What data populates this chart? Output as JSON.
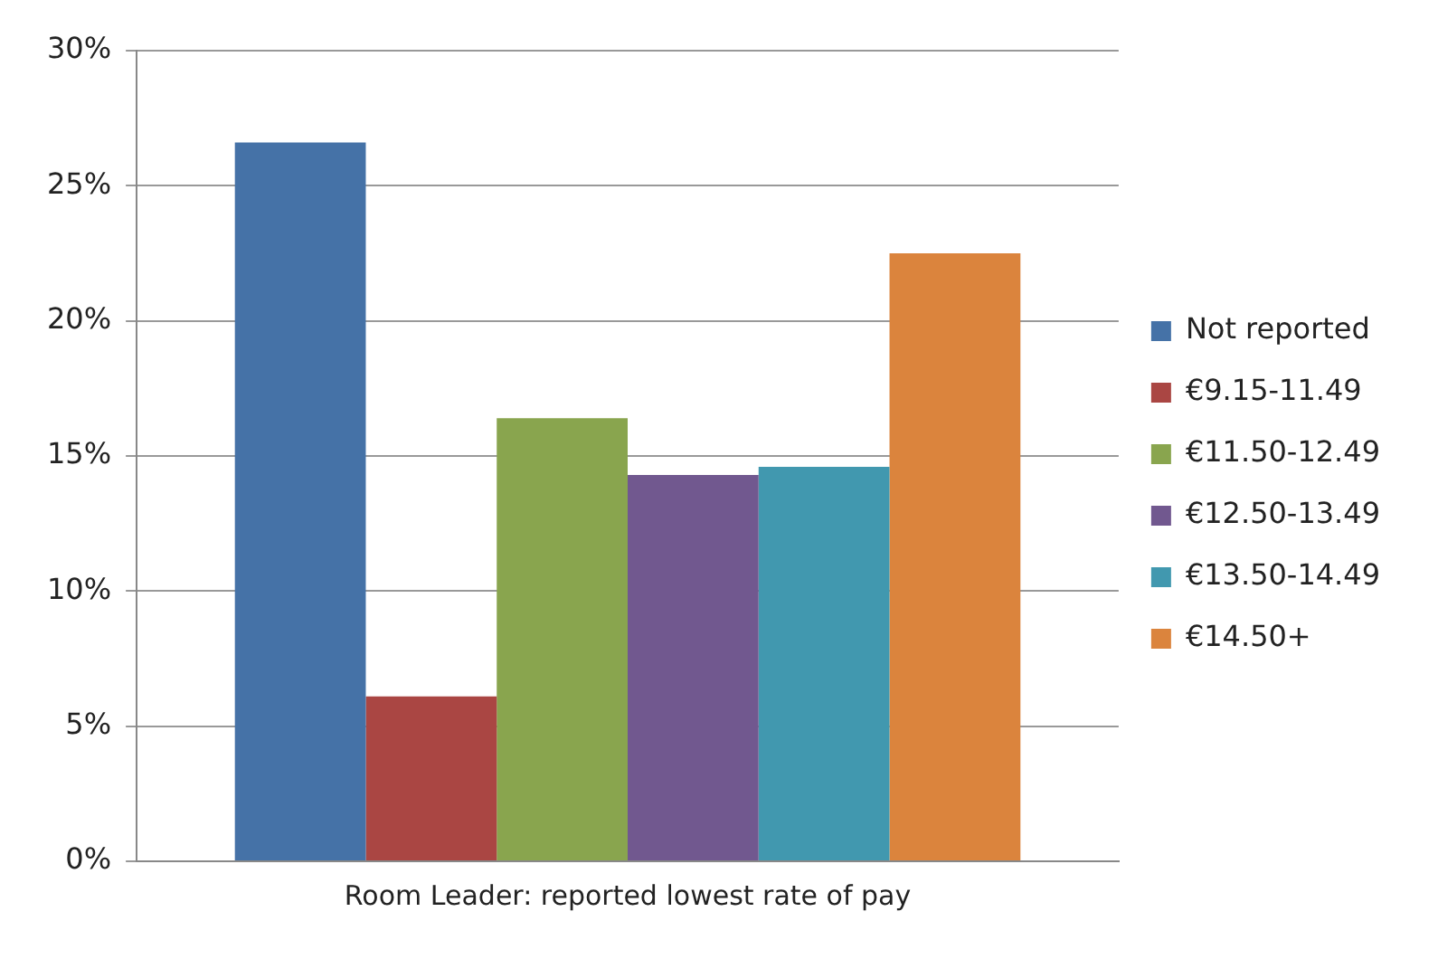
{
  "chart_data": {
    "type": "bar",
    "categories": [
      "Room Leader: reported lowest rate of pay"
    ],
    "series": [
      {
        "name": "Not reported",
        "color": "#4572a7",
        "values": [
          26.6
        ]
      },
      {
        "name": "€9.15-11.49",
        "color": "#aa4643",
        "values": [
          6.1
        ]
      },
      {
        "name": "€11.50-12.49",
        "color": "#89a54e",
        "values": [
          16.4
        ]
      },
      {
        "name": "€12.50-13.49",
        "color": "#71588f",
        "values": [
          14.3
        ]
      },
      {
        "name": "€13.50-14.49",
        "color": "#4198af",
        "values": [
          14.6
        ]
      },
      {
        "name": "€14.50+",
        "color": "#db843d",
        "values": [
          22.5
        ]
      }
    ],
    "ylim": [
      0,
      30
    ],
    "yticks": [
      {
        "value": 0,
        "label": "0%"
      },
      {
        "value": 5,
        "label": "5%"
      },
      {
        "value": 10,
        "label": "10%"
      },
      {
        "value": 15,
        "label": "15%"
      },
      {
        "value": 20,
        "label": "20%"
      },
      {
        "value": 25,
        "label": "25%"
      },
      {
        "value": 30,
        "label": "30%"
      }
    ],
    "grid": "y",
    "legend": "right"
  }
}
